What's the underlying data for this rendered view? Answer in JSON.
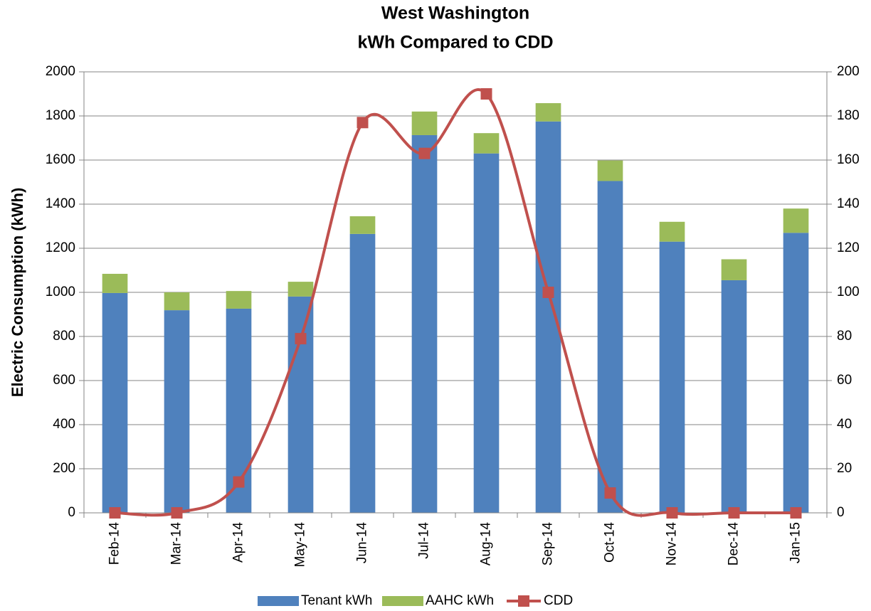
{
  "chart_data": {
    "type": "bar",
    "stacked": true,
    "title": "West Washington",
    "subtitle": "kWh Compared to CDD",
    "y_label": "Electric Consumption (kWh)",
    "categories": [
      "Feb-14",
      "Mar-14",
      "Apr-14",
      "May-14",
      "Jun-14",
      "Jul-14",
      "Aug-14",
      "Sep-14",
      "Oct-14",
      "Nov-14",
      "Dec-14",
      "Jan-15"
    ],
    "series": [
      {
        "name": "Tenant kWh",
        "color": "#4f81bd",
        "values": [
          997,
          919,
          926,
          981,
          1265,
          1713,
          1630,
          1775,
          1505,
          1230,
          1055,
          1270
        ]
      },
      {
        "name": "AAHC kWh",
        "color": "#9bbb59",
        "values": [
          87,
          81,
          80,
          67,
          80,
          107,
          92,
          83,
          93,
          90,
          95,
          110
        ]
      },
      {
        "name": "CDD",
        "color": "#c0504d",
        "type": "line",
        "smooth": true,
        "axis": "y2",
        "values": [
          0,
          0,
          14,
          79,
          177,
          163,
          190,
          100,
          9,
          0,
          0,
          0
        ]
      }
    ],
    "ylim": [
      0,
      2000
    ],
    "yticks": [
      0,
      200,
      400,
      600,
      800,
      1000,
      1200,
      1400,
      1600,
      1800,
      2000
    ],
    "y2lim": [
      0,
      200
    ],
    "y2ticks": [
      0,
      20,
      40,
      60,
      80,
      100,
      120,
      140,
      160,
      180,
      200
    ],
    "grid": true,
    "legend": "bottom"
  }
}
